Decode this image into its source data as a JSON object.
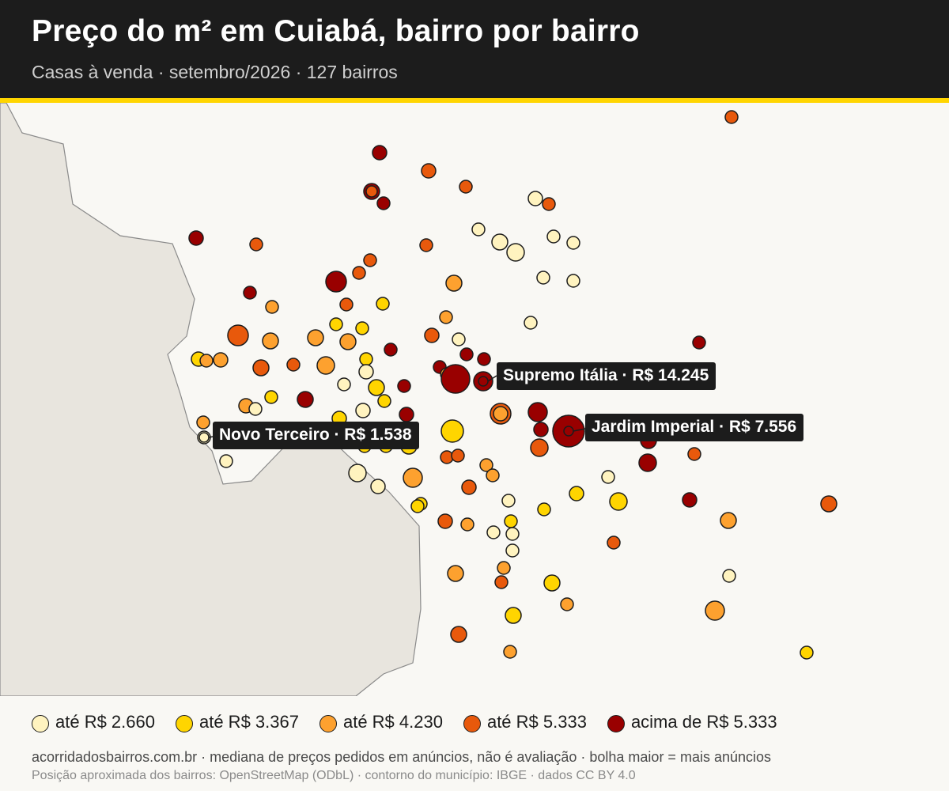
{
  "header": {
    "title": "Preço do m² em Cuiabá, bairro por bairro",
    "subtitle": "Casas à venda · setembro/2026 · 127 bairros"
  },
  "colors": {
    "header_bg": "#1c1c1c",
    "accent": "#ffd500",
    "map_bg": "#f9f8f4",
    "neighbor_land": "#e8e5de",
    "bins": [
      "#fff3bf",
      "#ffd500",
      "#fda12f",
      "#e8590c",
      "#990000"
    ]
  },
  "legend": {
    "items": [
      {
        "label": "até R$ 2.660",
        "bin": 0
      },
      {
        "label": "até R$ 3.367",
        "bin": 1
      },
      {
        "label": "até R$ 4.230",
        "bin": 2
      },
      {
        "label": "até R$ 5.333",
        "bin": 3
      },
      {
        "label": "acima de R$ 5.333",
        "bin": 4
      }
    ]
  },
  "callouts": {
    "supremo": "Supremo Itália · R$ 14.245",
    "jardim": "Jardim Imperial · R$ 7.556",
    "novo": "Novo Terceiro · R$ 1.538"
  },
  "footer": {
    "line1": "acorridadosbairros.com.br · mediana de preços pedidos em anúncios, não é avaliação · bolha maior = mais anúncios",
    "line2": "Posição aproximada dos bairros: OpenStreetMap (ODbL) · contorno do município: IBGE · dados CC BY 4.0"
  }
}
